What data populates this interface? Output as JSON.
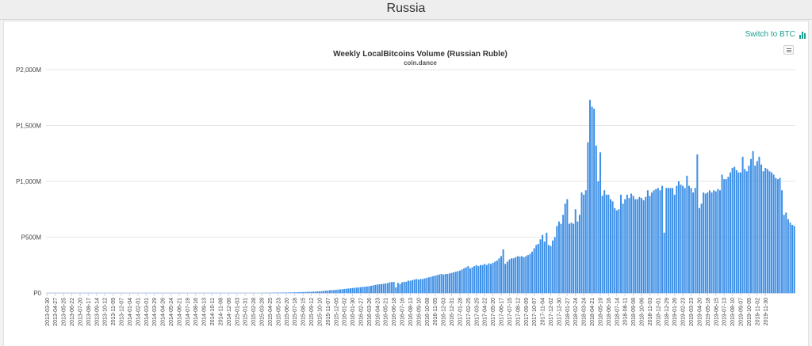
{
  "page": {
    "title": "Russia"
  },
  "switch": {
    "label": "Switch to BTC",
    "icon": "bar-chart-icon"
  },
  "menu": {
    "icon": "hamburger-menu-icon"
  },
  "colors": {
    "bar": "#3d8fe6",
    "link": "#1b9e8f",
    "grid": "#e6e6e6"
  },
  "chart_data": {
    "type": "bar",
    "title": "Weekly LocalBitcoins Volume (Russian Ruble)",
    "subtitle": "coin.dance",
    "unit": "M RUB",
    "ylim": [
      0,
      2000
    ],
    "y_ticks": [
      0,
      500,
      1000,
      1500,
      2000
    ],
    "y_tick_labels": [
      "P0",
      "P500M",
      "P1,000M",
      "P1,500M",
      "P2,000M"
    ],
    "grid": true,
    "x_tick_labels": [
      "2013-03-30",
      "2013-04-27",
      "2013-05-25",
      "2013-06-22",
      "2013-07-20",
      "2013-08-17",
      "2013-09-14",
      "2013-10-12",
      "2013-11-09",
      "2013-12-07",
      "2014-01-04",
      "2014-02-01",
      "2014-03-01",
      "2014-03-29",
      "2014-04-26",
      "2014-05-24",
      "2014-06-21",
      "2014-07-19",
      "2014-08-16",
      "2014-09-13",
      "2014-10-11",
      "2014-11-08",
      "2014-12-06",
      "2015-01-03",
      "2015-01-31",
      "2015-02-28",
      "2015-03-28",
      "2015-04-25",
      "2015-05-23",
      "2015-06-20",
      "2015-07-18",
      "2015-08-15",
      "2015-09-12",
      "2015-10-10",
      "2015-11-07",
      "2015-12-05",
      "2016-01-02",
      "2016-01-30",
      "2016-02-27",
      "2016-03-26",
      "2016-04-23",
      "2016-05-21",
      "2016-06-18",
      "2016-07-16",
      "2016-08-13",
      "2016-09-10",
      "2016-10-08",
      "2016-11-05",
      "2016-12-03",
      "2016-12-31",
      "2017-01-28",
      "2017-02-25",
      "2017-03-25",
      "2017-04-22",
      "2017-05-20",
      "2017-06-17",
      "2017-07-15",
      "2017-08-12",
      "2017-09-09",
      "2017-10-07",
      "2017-11-04",
      "2017-12-02",
      "2017-12-30",
      "2018-01-27",
      "2018-02-24",
      "2018-03-24",
      "2018-04-21",
      "2018-05-19",
      "2018-06-16",
      "2018-07-14",
      "2018-08-11",
      "2018-09-08",
      "2018-10-06",
      "2018-11-03",
      "2018-12-01",
      "2018-12-29",
      "2019-01-26",
      "2019-02-23",
      "2019-03-23",
      "2019-04-20",
      "2019-05-18",
      "2019-06-15",
      "2019-07-13",
      "2019-08-10",
      "2019-09-07",
      "2019-10-05",
      "2019-11-02",
      "2019-11-30"
    ],
    "series": [
      {
        "start": "2013-03-30",
        "interval": "weekly",
        "values": [
          1,
          1,
          1,
          1,
          1,
          1,
          1,
          1,
          1,
          1,
          1,
          1,
          1,
          1,
          1,
          1,
          1,
          1,
          1,
          1,
          1,
          1,
          1,
          1,
          1,
          1,
          1,
          1,
          1,
          1,
          1,
          1,
          1,
          1,
          1,
          1,
          1,
          1,
          1,
          1,
          1,
          1,
          1,
          1,
          1,
          1,
          1,
          1,
          1,
          1,
          1,
          1,
          1,
          1,
          1,
          1,
          1,
          1,
          1,
          1,
          1,
          1,
          1,
          1,
          1,
          1,
          1,
          1,
          1,
          1,
          1,
          1,
          1,
          1,
          1,
          1,
          1,
          1,
          1,
          1,
          1,
          1,
          1,
          1,
          1,
          1,
          1,
          1,
          1,
          1,
          1,
          1,
          1,
          1,
          1,
          1,
          1,
          1,
          1,
          1,
          1,
          1,
          1,
          1,
          2,
          2,
          2,
          2,
          2,
          2,
          3,
          3,
          3,
          3,
          3,
          4,
          4,
          4,
          5,
          5,
          6,
          6,
          7,
          8,
          8,
          9,
          10,
          10,
          11,
          12,
          13,
          14,
          15,
          16,
          18,
          20,
          22,
          24,
          25,
          26,
          28,
          30,
          32,
          33,
          36,
          38,
          40,
          42,
          44,
          46,
          48,
          50,
          52,
          54,
          56,
          58,
          60,
          64,
          68,
          72,
          75,
          78,
          80,
          82,
          85,
          88,
          95,
          97,
          99,
          50,
          90,
          80,
          95,
          100,
          100,
          110,
          110,
          115,
          120,
          125,
          120,
          125,
          125,
          130,
          135,
          140,
          145,
          150,
          155,
          160,
          165,
          170,
          165,
          170,
          170,
          175,
          180,
          185,
          190,
          195,
          200,
          210,
          220,
          230,
          240,
          220,
          230,
          240,
          250,
          240,
          250,
          250,
          260,
          250,
          265,
          260,
          270,
          280,
          290,
          310,
          330,
          390,
          260,
          280,
          300,
          310,
          310,
          320,
          330,
          325,
          330,
          320,
          330,
          340,
          350,
          370,
          400,
          430,
          440,
          480,
          520,
          460,
          540,
          430,
          420,
          470,
          500,
          600,
          640,
          620,
          700,
          800,
          840,
          620,
          630,
          620,
          750,
          640,
          700,
          900,
          880,
          920,
          1350,
          1730,
          1670,
          1650,
          1320,
          1000,
          1260,
          870,
          920,
          880,
          880,
          840,
          820,
          760,
          740,
          750,
          880,
          800,
          840,
          880,
          850,
          890,
          870,
          840,
          840,
          860,
          850,
          830,
          860,
          920,
          870,
          900,
          920,
          930,
          940,
          920,
          960,
          540,
          940,
          940,
          940,
          940,
          880,
          960,
          1000,
          970,
          960,
          940,
          1050,
          960,
          940,
          900,
          940,
          1240,
          760,
          800,
          900,
          890,
          900,
          920,
          900,
          920,
          910,
          930,
          920,
          1060,
          1020,
          1020,
          1040,
          1080,
          1120,
          1130,
          1100,
          1080,
          1080,
          1220,
          1110,
          1090,
          1140,
          1200,
          1270,
          1140,
          1180,
          1220,
          1150,
          1090,
          1120,
          1110,
          1090,
          1080,
          1060,
          1030,
          1020,
          1030,
          920,
          700,
          720,
          660,
          630,
          610,
          600
        ]
      }
    ]
  }
}
